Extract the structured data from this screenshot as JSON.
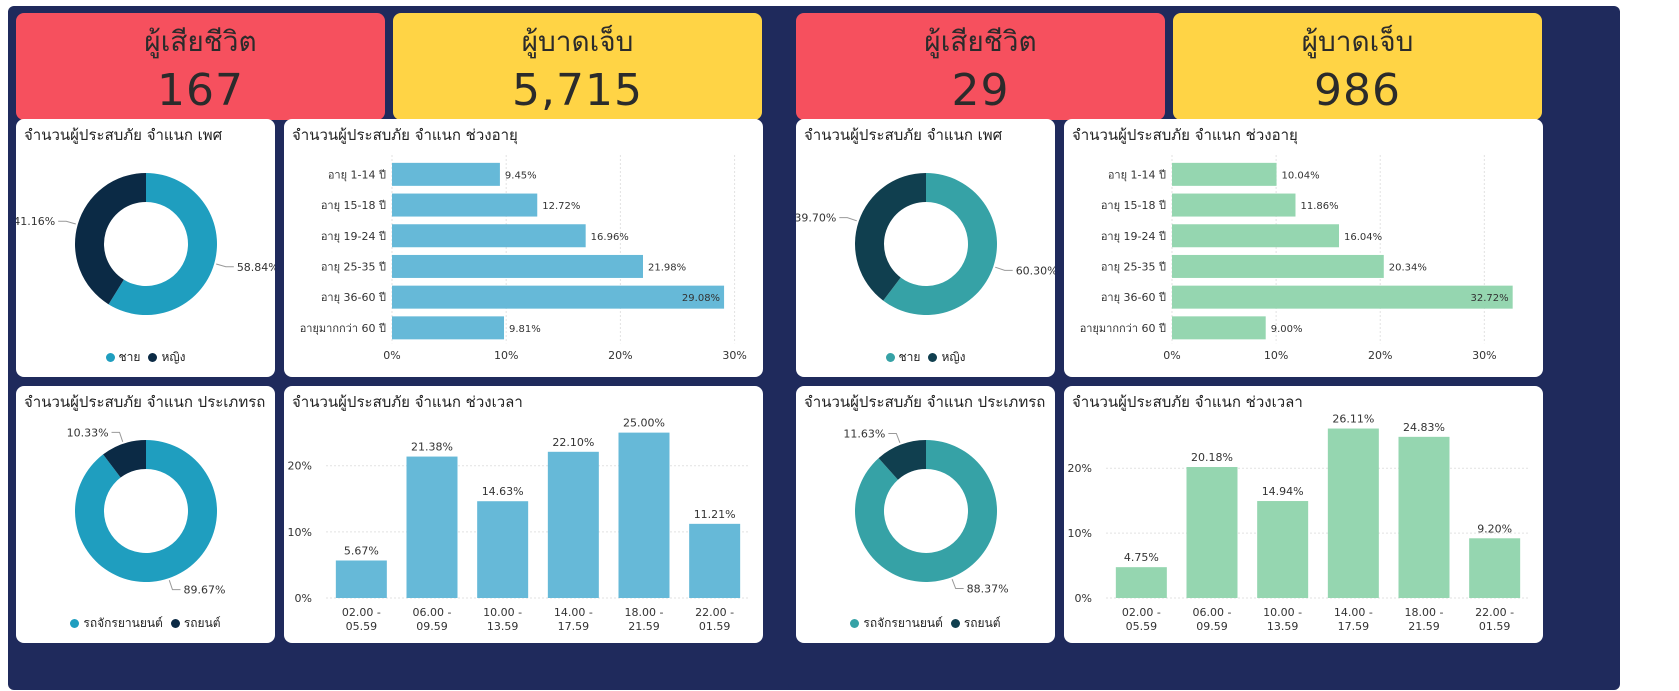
{
  "panels": [
    {
      "kpi": {
        "death_label": "ผู้เสียชีวิต",
        "death_value": "167",
        "injury_label": "ผู้บาดเจ็บ",
        "injury_value": "5,715"
      },
      "colors": {
        "primary": "#1f9ebf",
        "dark": "#0b2a45",
        "bar": "#66b9d8"
      }
    },
    {
      "kpi": {
        "death_label": "ผู้เสียชีวิต",
        "death_value": "29",
        "injury_label": "ผู้บาดเจ็บ",
        "injury_value": "986"
      },
      "colors": {
        "primary": "#36a2a6",
        "dark": "#103f4f",
        "bar": "#95d6b0"
      }
    }
  ],
  "chart_data": [
    {
      "type": "pie",
      "title": "จำนวนผู้ประสบภัย จำแนก เพศ",
      "slices": [
        {
          "name": "ชาย",
          "value": 58.84,
          "label": "58.84%"
        },
        {
          "name": "หญิง",
          "value": 41.16,
          "label": "41.16%"
        }
      ],
      "legend": [
        "ชาย",
        "หญิง"
      ]
    },
    {
      "type": "bar",
      "orientation": "horizontal",
      "title": "จำนวนผู้ประสบภัย จำแนก ช่วงอายุ",
      "categories": [
        "อายุ 1-14 ปี",
        "อายุ 15-18 ปี",
        "อายุ 19-24 ปี",
        "อายุ 25-35 ปี",
        "อายุ 36-60 ปี",
        "อายุมากกว่า 60 ปี"
      ],
      "values": [
        9.45,
        12.72,
        16.96,
        21.98,
        29.08,
        9.81
      ],
      "labels": [
        "9.45%",
        "12.72%",
        "16.96%",
        "21.98%",
        "29.08%",
        "9.81%"
      ],
      "xlim": [
        0,
        31
      ],
      "ticks": [
        0,
        10,
        20,
        30
      ],
      "tick_labels": [
        "0%",
        "10%",
        "20%",
        "30%"
      ]
    },
    {
      "type": "pie",
      "title": "จำนวนผู้ประสบภัย จำแนก ประเภทรถ",
      "slices": [
        {
          "name": "รถจักรยานยนต์",
          "value": 89.67,
          "label": "89.67%"
        },
        {
          "name": "รถยนต์",
          "value": 10.33,
          "label": "10.33%"
        }
      ],
      "legend": [
        "รถจักรยานยนต์",
        "รถยนต์"
      ]
    },
    {
      "type": "bar",
      "orientation": "vertical",
      "title": "จำนวนผู้ประสบภัย จำแนก ช่วงเวลา",
      "categories": [
        [
          "02.00 -",
          "05.59"
        ],
        [
          "06.00 -",
          "09.59"
        ],
        [
          "10.00 -",
          "13.59"
        ],
        [
          "14.00 -",
          "17.59"
        ],
        [
          "18.00 -",
          "21.59"
        ],
        [
          "22.00 -",
          "01.59"
        ]
      ],
      "values": [
        5.67,
        21.38,
        14.63,
        22.1,
        25.0,
        11.21
      ],
      "labels": [
        "5.67%",
        "21.38%",
        "14.63%",
        "22.10%",
        "25.00%",
        "11.21%"
      ],
      "ylim": [
        0,
        26
      ],
      "ticks": [
        0,
        10,
        20
      ],
      "tick_labels": [
        "0%",
        "10%",
        "20%"
      ]
    },
    {
      "type": "pie",
      "title": "จำนวนผู้ประสบภัย จำแนก เพศ",
      "slices": [
        {
          "name": "ชาย",
          "value": 60.3,
          "label": "60.30%"
        },
        {
          "name": "หญิง",
          "value": 39.7,
          "label": "39.70%"
        }
      ],
      "legend": [
        "ชาย",
        "หญิง"
      ]
    },
    {
      "type": "bar",
      "orientation": "horizontal",
      "title": "จำนวนผู้ประสบภัย จำแนก ช่วงอายุ",
      "categories": [
        "อายุ 1-14 ปี",
        "อายุ 15-18 ปี",
        "อายุ 19-24 ปี",
        "อายุ 25-35 ปี",
        "อายุ 36-60 ปี",
        "อายุมากกว่า 60 ปี"
      ],
      "values": [
        10.04,
        11.86,
        16.04,
        20.34,
        32.72,
        9.0
      ],
      "labels": [
        "10.04%",
        "11.86%",
        "16.04%",
        "20.34%",
        "32.72%",
        "9.00%"
      ],
      "xlim": [
        0,
        34
      ],
      "ticks": [
        0,
        10,
        20,
        30
      ],
      "tick_labels": [
        "0%",
        "10%",
        "20%",
        "30%"
      ]
    },
    {
      "type": "pie",
      "title": "จำนวนผู้ประสบภัย จำแนก ประเภทรถ",
      "slices": [
        {
          "name": "รถจักรยานยนต์",
          "value": 88.37,
          "label": "88.37%"
        },
        {
          "name": "รถยนต์",
          "value": 11.63,
          "label": "11.63%"
        }
      ],
      "legend": [
        "รถจักรยานยนต์",
        "รถยนต์"
      ]
    },
    {
      "type": "bar",
      "orientation": "vertical",
      "title": "จำนวนผู้ประสบภัย จำแนก ช่วงเวลา",
      "categories": [
        [
          "02.00 -",
          "05.59"
        ],
        [
          "06.00 -",
          "09.59"
        ],
        [
          "10.00 -",
          "13.59"
        ],
        [
          "14.00 -",
          "17.59"
        ],
        [
          "18.00 -",
          "21.59"
        ],
        [
          "22.00 -",
          "01.59"
        ]
      ],
      "values": [
        4.75,
        20.18,
        14.94,
        26.11,
        24.83,
        9.2
      ],
      "labels": [
        "4.75%",
        "20.18%",
        "14.94%",
        "26.11%",
        "24.83%",
        "9.20%"
      ],
      "ylim": [
        0,
        26.5
      ],
      "ticks": [
        0,
        10,
        20
      ],
      "tick_labels": [
        "0%",
        "10%",
        "20%"
      ]
    }
  ]
}
